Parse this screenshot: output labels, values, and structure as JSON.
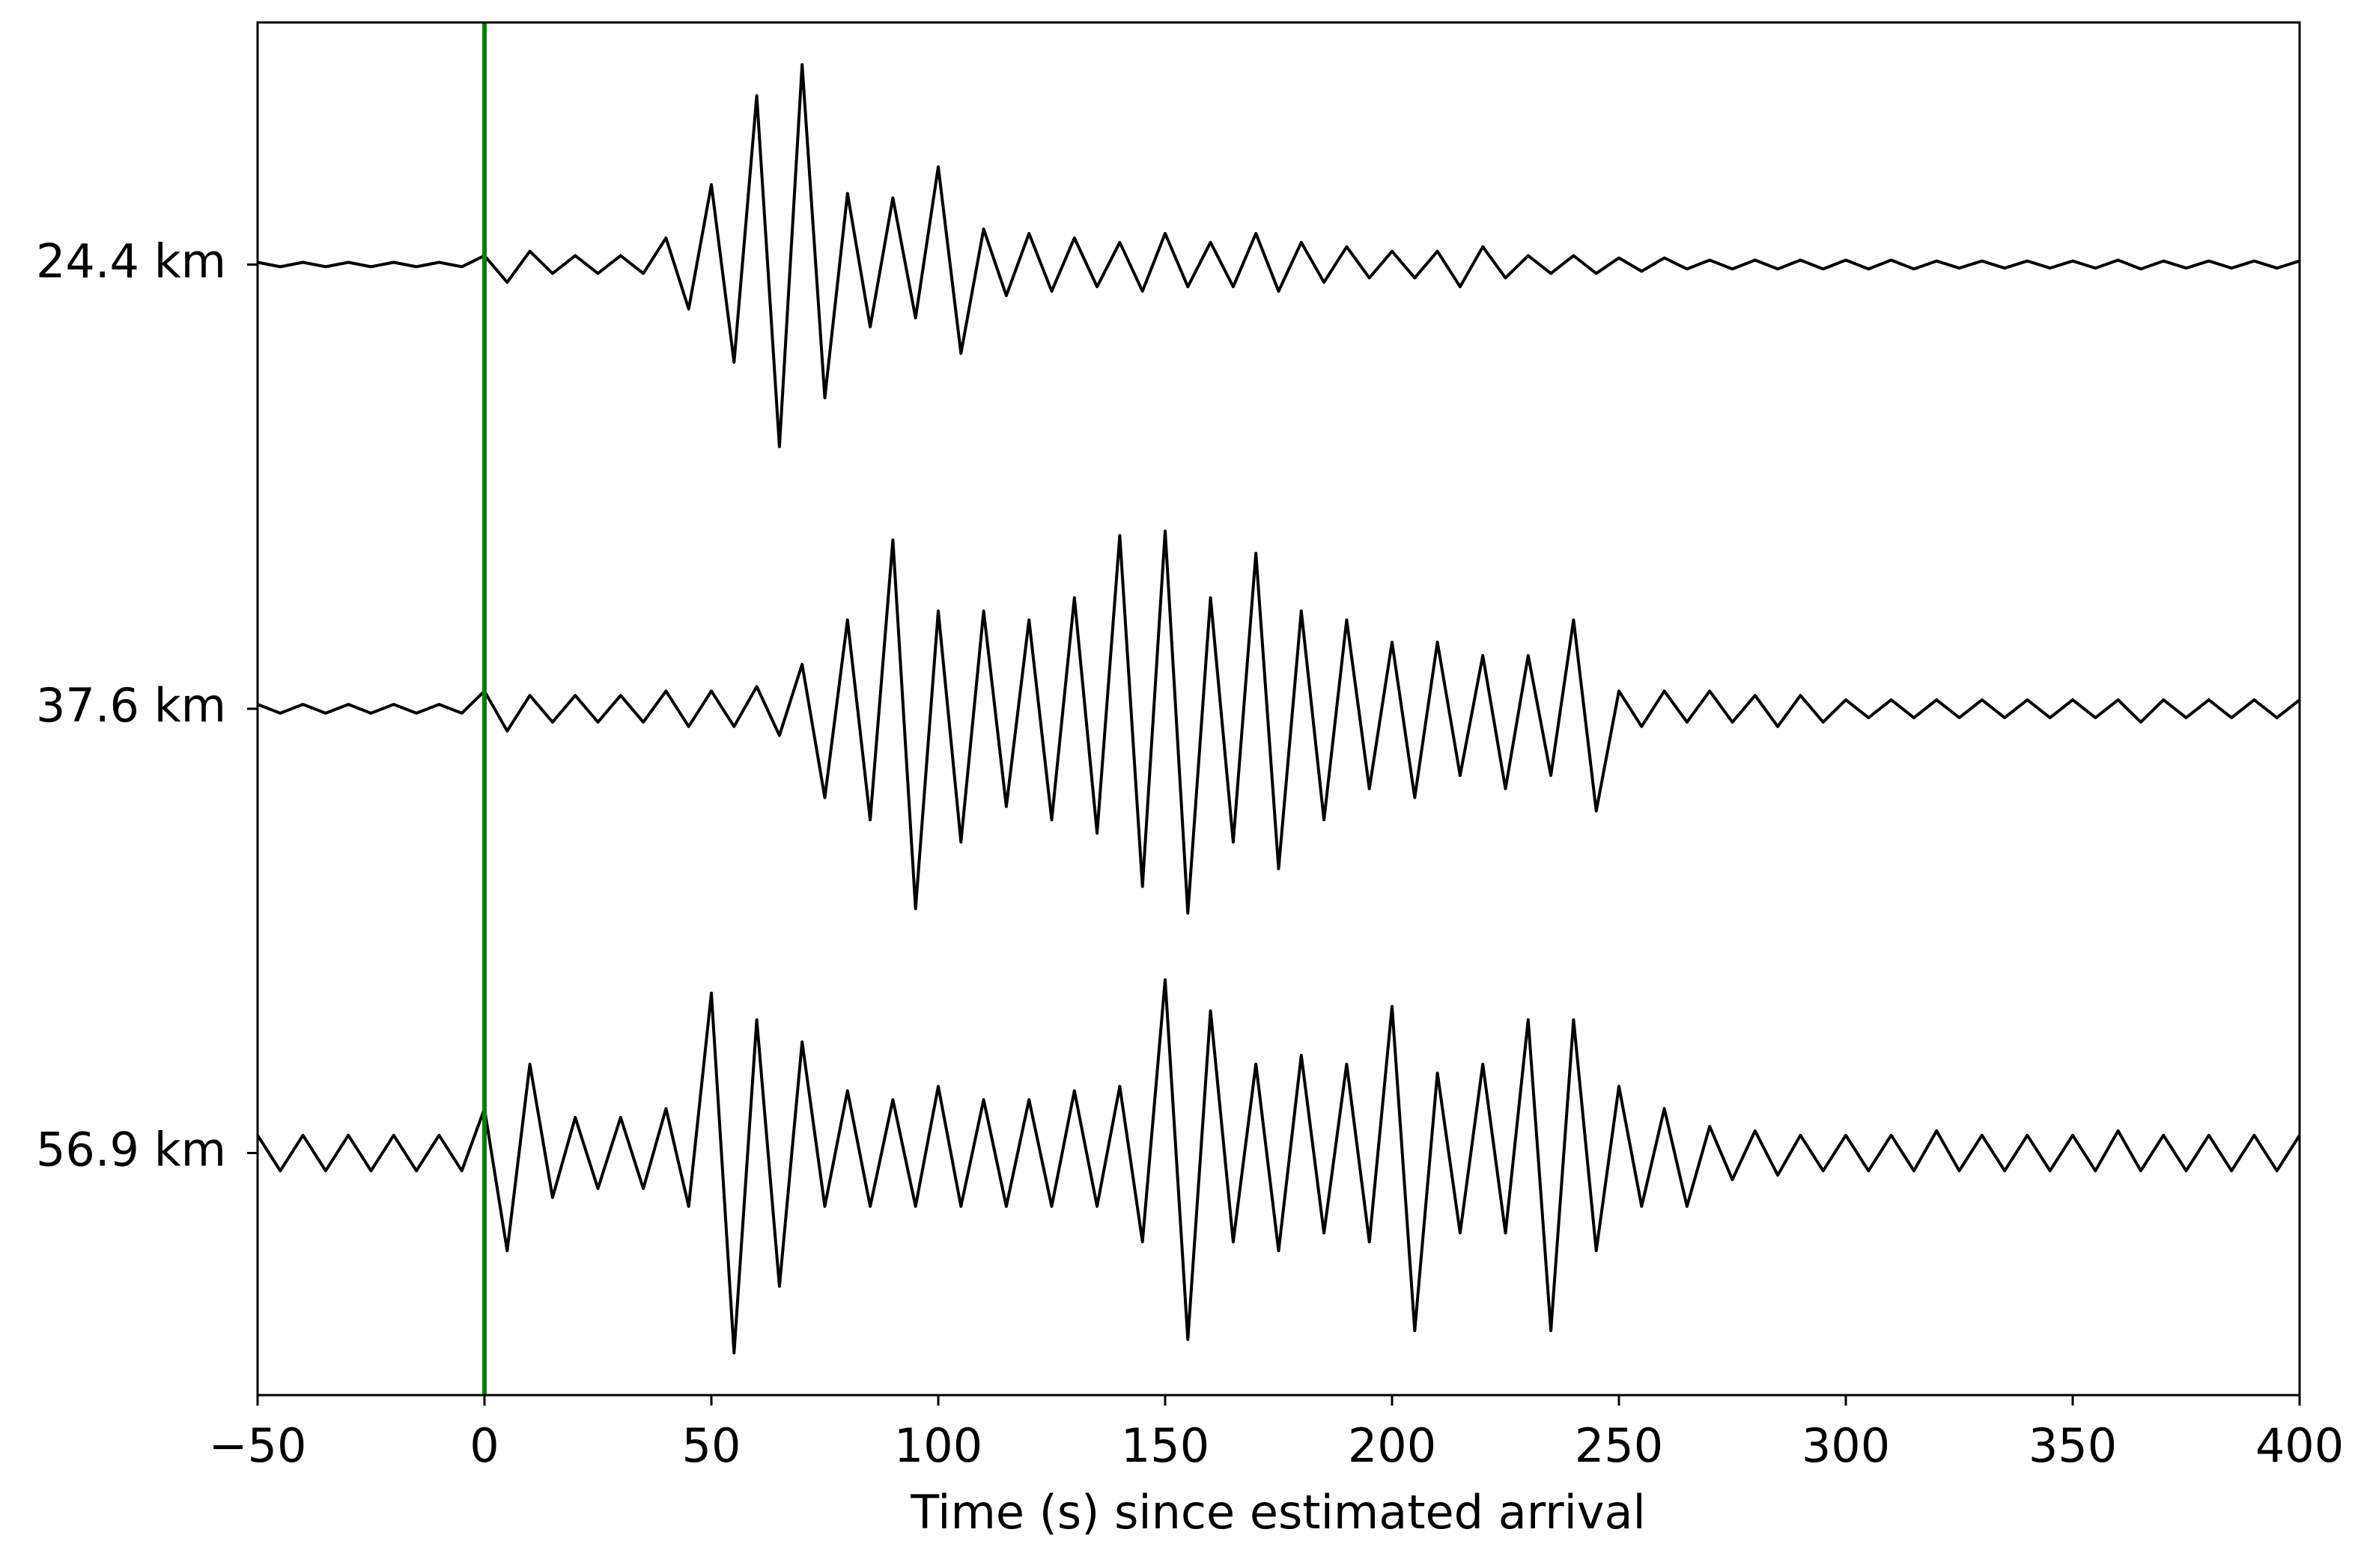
{
  "chart_data": {
    "type": "line",
    "xlabel": "Time (s) since estimated arrival",
    "xlim": [
      -50,
      400
    ],
    "xticks": [
      {
        "value": -50,
        "label": "−50"
      },
      0,
      50,
      100,
      150,
      200,
      250,
      300,
      350,
      400
    ],
    "ylim": [
      -2.545,
      0.545
    ],
    "vline": {
      "x": 0,
      "color": "#008000"
    },
    "x": [
      -50,
      -45,
      -40,
      -35,
      -30,
      -25,
      -20,
      -15,
      -10,
      -5,
      0,
      5,
      10,
      15,
      20,
      25,
      30,
      35,
      40,
      45,
      50,
      55,
      60,
      65,
      70,
      75,
      80,
      85,
      90,
      95,
      100,
      105,
      110,
      115,
      120,
      125,
      130,
      135,
      140,
      145,
      150,
      155,
      160,
      165,
      170,
      175,
      180,
      185,
      190,
      195,
      200,
      205,
      210,
      215,
      220,
      225,
      230,
      235,
      240,
      245,
      250,
      255,
      260,
      265,
      270,
      275,
      280,
      285,
      290,
      295,
      300,
      305,
      310,
      315,
      320,
      325,
      330,
      335,
      340,
      345,
      350,
      355,
      360,
      365,
      370,
      375,
      380,
      385,
      390,
      395,
      400
    ],
    "series": [
      {
        "name": "24.4 km",
        "color": "#000000",
        "values": [
          0.005,
          -0.005,
          0.005,
          -0.005,
          0.005,
          -0.005,
          0.005,
          -0.005,
          0.005,
          -0.005,
          0.02,
          -0.04,
          0.03,
          -0.02,
          0.02,
          -0.02,
          0.02,
          -0.02,
          0.06,
          -0.1,
          0.18,
          -0.22,
          0.38,
          -0.41,
          0.45,
          -0.3,
          0.16,
          -0.14,
          0.15,
          -0.12,
          0.22,
          -0.2,
          0.08,
          -0.07,
          0.07,
          -0.06,
          0.06,
          -0.05,
          0.05,
          -0.06,
          0.07,
          -0.05,
          0.05,
          -0.05,
          0.07,
          -0.06,
          0.05,
          -0.04,
          0.04,
          -0.03,
          0.03,
          -0.03,
          0.03,
          -0.05,
          0.04,
          -0.03,
          0.02,
          -0.02,
          0.02,
          -0.02,
          0.015,
          -0.015,
          0.015,
          -0.01,
          0.01,
          -0.01,
          0.01,
          -0.01,
          0.01,
          -0.01,
          0.01,
          -0.01,
          0.01,
          -0.01,
          0.008,
          -0.008,
          0.008,
          -0.008,
          0.008,
          -0.008,
          0.008,
          -0.008,
          0.01,
          -0.01,
          0.008,
          -0.008,
          0.008,
          -0.008,
          0.008,
          -0.008,
          0.008
        ]
      },
      {
        "name": "37.6 km",
        "color": "#000000",
        "values": [
          0.01,
          -0.01,
          0.01,
          -0.01,
          0.01,
          -0.01,
          0.01,
          -0.01,
          0.01,
          -0.01,
          0.04,
          -0.05,
          0.03,
          -0.03,
          0.03,
          -0.03,
          0.03,
          -0.03,
          0.04,
          -0.04,
          0.04,
          -0.04,
          0.05,
          -0.06,
          0.1,
          -0.2,
          0.2,
          -0.25,
          0.38,
          -0.45,
          0.22,
          -0.3,
          0.22,
          -0.22,
          0.2,
          -0.25,
          0.25,
          -0.28,
          0.39,
          -0.4,
          0.4,
          -0.46,
          0.25,
          -0.3,
          0.35,
          -0.36,
          0.22,
          -0.25,
          0.2,
          -0.18,
          0.15,
          -0.2,
          0.15,
          -0.15,
          0.12,
          -0.18,
          0.12,
          -0.15,
          0.2,
          -0.23,
          0.04,
          -0.04,
          0.04,
          -0.03,
          0.04,
          -0.03,
          0.03,
          -0.04,
          0.03,
          -0.03,
          0.02,
          -0.02,
          0.02,
          -0.02,
          0.02,
          -0.02,
          0.02,
          -0.02,
          0.02,
          -0.02,
          0.02,
          -0.02,
          0.02,
          -0.03,
          0.02,
          -0.02,
          0.02,
          -0.02,
          0.02,
          -0.02,
          0.02
        ]
      },
      {
        "name": "56.9 km",
        "color": "#000000",
        "values": [
          0.04,
          -0.04,
          0.04,
          -0.04,
          0.04,
          -0.04,
          0.04,
          -0.04,
          0.04,
          -0.04,
          0.1,
          -0.22,
          0.2,
          -0.1,
          0.08,
          -0.08,
          0.08,
          -0.08,
          0.1,
          -0.12,
          0.36,
          -0.45,
          0.3,
          -0.3,
          0.25,
          -0.12,
          0.14,
          -0.12,
          0.12,
          -0.12,
          0.15,
          -0.12,
          0.12,
          -0.12,
          0.12,
          -0.12,
          0.14,
          -0.12,
          0.15,
          -0.2,
          0.39,
          -0.42,
          0.32,
          -0.2,
          0.2,
          -0.22,
          0.22,
          -0.18,
          0.2,
          -0.2,
          0.33,
          -0.4,
          0.18,
          -0.18,
          0.2,
          -0.18,
          0.3,
          -0.4,
          0.3,
          -0.22,
          0.15,
          -0.12,
          0.1,
          -0.12,
          0.06,
          -0.06,
          0.05,
          -0.05,
          0.04,
          -0.04,
          0.04,
          -0.04,
          0.04,
          -0.04,
          0.05,
          -0.04,
          0.04,
          -0.04,
          0.04,
          -0.04,
          0.04,
          -0.04,
          0.05,
          -0.04,
          0.04,
          -0.04,
          0.04,
          -0.04,
          0.04,
          -0.04,
          0.04
        ]
      }
    ]
  }
}
